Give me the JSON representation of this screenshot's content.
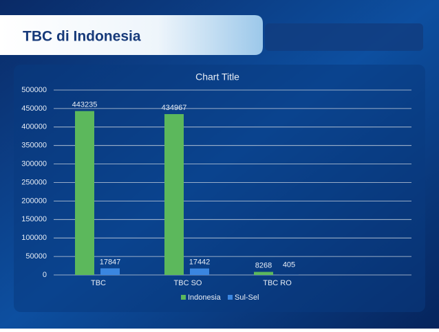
{
  "slide": {
    "title": "TBC di Indonesia"
  },
  "chart_data": {
    "type": "bar",
    "title": "Chart Title",
    "categories": [
      "TBC",
      "TBC SO",
      "TBC RO"
    ],
    "series": [
      {
        "name": "Indonesia",
        "color": "#5cb85c",
        "values": [
          443235,
          434967,
          8268
        ]
      },
      {
        "name": "Sul-Sel",
        "color": "#3a86e0",
        "values": [
          17847,
          17442,
          405
        ]
      }
    ],
    "ylim": [
      0,
      500000
    ],
    "yticks": [
      0,
      50000,
      100000,
      150000,
      200000,
      250000,
      300000,
      350000,
      400000,
      450000,
      500000
    ],
    "grid": true,
    "legend": "bottom"
  }
}
